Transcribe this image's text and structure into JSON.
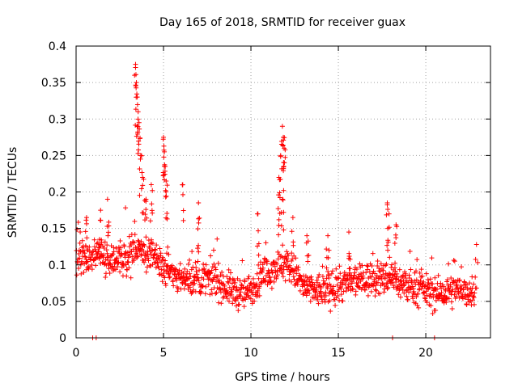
{
  "chart_data": {
    "type": "scatter",
    "title": "Day 165 of 2018, SRMTID for receiver guax",
    "xlabel": "GPS time / hours",
    "ylabel": "SRMTID / TECUs",
    "xlim": [
      0,
      23.7
    ],
    "ylim": [
      0,
      0.4
    ],
    "xticks": [
      0,
      5,
      10,
      15,
      20
    ],
    "xtick_labels": [
      "0",
      "5",
      "10",
      "15",
      "20"
    ],
    "yticks": [
      0,
      0.05,
      0.1,
      0.15,
      0.2,
      0.25,
      0.3,
      0.35,
      0.4
    ],
    "ytick_labels": [
      "0",
      "0.05",
      "0.1",
      "0.15",
      "0.2",
      "0.25",
      "0.3",
      "0.35",
      "0.4"
    ],
    "grid": true,
    "marker": "plus",
    "series": [
      {
        "name": "SRMTID",
        "color": "#ff0000",
        "baseline": [
          [
            0.0,
            0.1
          ],
          [
            0.5,
            0.11
          ],
          [
            1.0,
            0.11
          ],
          [
            1.5,
            0.12
          ],
          [
            2.0,
            0.1
          ],
          [
            2.5,
            0.11
          ],
          [
            3.0,
            0.11
          ],
          [
            3.5,
            0.12
          ],
          [
            4.0,
            0.12
          ],
          [
            4.5,
            0.11
          ],
          [
            5.0,
            0.1
          ],
          [
            5.5,
            0.09
          ],
          [
            6.0,
            0.08
          ],
          [
            6.5,
            0.08
          ],
          [
            7.0,
            0.08
          ],
          [
            7.5,
            0.08
          ],
          [
            8.0,
            0.08
          ],
          [
            8.5,
            0.07
          ],
          [
            9.0,
            0.065
          ],
          [
            9.5,
            0.06
          ],
          [
            10.0,
            0.065
          ],
          [
            10.5,
            0.08
          ],
          [
            11.0,
            0.09
          ],
          [
            11.5,
            0.1
          ],
          [
            12.0,
            0.1
          ],
          [
            12.5,
            0.09
          ],
          [
            13.0,
            0.07
          ],
          [
            13.5,
            0.065
          ],
          [
            14.0,
            0.065
          ],
          [
            14.5,
            0.065
          ],
          [
            15.0,
            0.07
          ],
          [
            15.5,
            0.075
          ],
          [
            16.0,
            0.075
          ],
          [
            16.5,
            0.08
          ],
          [
            17.0,
            0.08
          ],
          [
            17.5,
            0.08
          ],
          [
            18.0,
            0.085
          ],
          [
            18.5,
            0.075
          ],
          [
            19.0,
            0.07
          ],
          [
            19.5,
            0.07
          ],
          [
            20.0,
            0.065
          ],
          [
            20.5,
            0.06
          ],
          [
            21.0,
            0.06
          ],
          [
            21.5,
            0.065
          ],
          [
            22.0,
            0.065
          ],
          [
            22.5,
            0.065
          ],
          [
            22.8,
            0.06
          ]
        ],
        "spikes": [
          [
            0.6,
            0.165
          ],
          [
            1.4,
            0.175
          ],
          [
            1.8,
            0.19
          ],
          [
            3.4,
            0.375
          ],
          [
            3.45,
            0.35
          ],
          [
            3.5,
            0.33
          ],
          [
            3.55,
            0.31
          ],
          [
            3.6,
            0.295
          ],
          [
            3.7,
            0.25
          ],
          [
            3.8,
            0.22
          ],
          [
            4.0,
            0.19
          ],
          [
            4.3,
            0.21
          ],
          [
            5.0,
            0.275
          ],
          [
            5.05,
            0.255
          ],
          [
            5.1,
            0.235
          ],
          [
            5.15,
            0.215
          ],
          [
            6.1,
            0.21
          ],
          [
            7.0,
            0.185
          ],
          [
            10.4,
            0.17
          ],
          [
            11.6,
            0.22
          ],
          [
            11.7,
            0.25
          ],
          [
            11.8,
            0.29
          ],
          [
            11.85,
            0.275
          ],
          [
            11.9,
            0.26
          ],
          [
            11.8,
            0.19
          ],
          [
            12.4,
            0.165
          ],
          [
            13.2,
            0.14
          ],
          [
            14.4,
            0.14
          ],
          [
            15.6,
            0.145
          ],
          [
            17.8,
            0.185
          ],
          [
            17.9,
            0.17
          ],
          [
            18.3,
            0.155
          ],
          [
            22.9,
            0.128
          ]
        ],
        "zeros": [
          0.95,
          1.15,
          18.1,
          20.5
        ]
      }
    ]
  }
}
